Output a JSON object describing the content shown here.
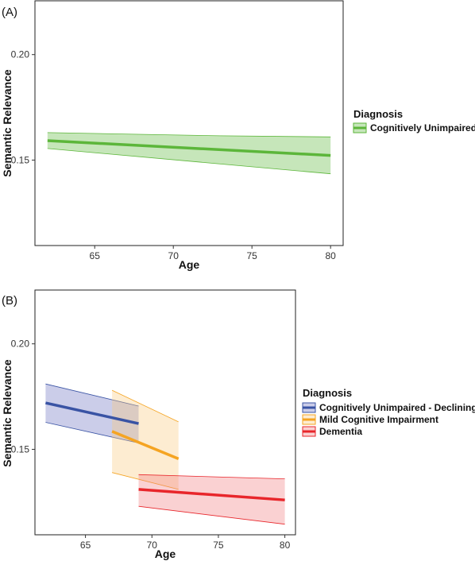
{
  "chart_data": [
    {
      "type": "line",
      "panel_label": "(A)",
      "xlabel": "Age",
      "ylabel": "Semantic Relevance",
      "xlim": [
        61.2,
        80.8
      ],
      "ylim": [
        0.1095,
        0.2255
      ],
      "x_ticks": [
        65,
        70,
        75,
        80
      ],
      "x_tick_labels": [
        "65",
        "70",
        "75",
        "80"
      ],
      "y_ticks": [
        0.15,
        0.2
      ],
      "y_tick_labels": [
        "0.15",
        "0.20"
      ],
      "grid": false,
      "legend": {
        "title": "Diagnosis",
        "placement": "right",
        "entries": [
          "Cognitively Unimpaired"
        ]
      },
      "series": [
        {
          "name": "Cognitively Unimpaired",
          "color": "#5CB63A",
          "fill": "#5CB63A",
          "x": [
            62,
            80
          ],
          "y": [
            0.1592,
            0.1522
          ],
          "lower": [
            0.1555,
            0.1435
          ],
          "upper": [
            0.163,
            0.161
          ],
          "upper_mid": [
            73,
            0.1615
          ]
        }
      ]
    },
    {
      "type": "line",
      "panel_label": "(B)",
      "xlabel": "Age",
      "ylabel": "Semantic Relevance",
      "xlim": [
        61.2,
        80.8
      ],
      "ylim": [
        0.1095,
        0.2255
      ],
      "x_ticks": [
        65,
        70,
        75,
        80
      ],
      "x_tick_labels": [
        "65",
        "70",
        "75",
        "80"
      ],
      "y_ticks": [
        0.15,
        0.2
      ],
      "y_tick_labels": [
        "0.15",
        "0.20"
      ],
      "grid": false,
      "legend": {
        "title": "Diagnosis",
        "placement": "right",
        "entries": [
          "Cognitively Unimpaired - Declining",
          "Mild Cognitive Impairment",
          "Dementia"
        ]
      },
      "series": [
        {
          "name": "Cognitively Unimpaired - Declining",
          "color": "#3953A4",
          "fill": "#6A6FC0",
          "x": [
            62,
            69
          ],
          "y": [
            0.172,
            0.1622
          ],
          "lower": [
            0.1628,
            0.153
          ],
          "upper": [
            0.181,
            0.1705
          ]
        },
        {
          "name": "Mild Cognitive Impairment",
          "color": "#F5A422",
          "fill": "#F9C97A",
          "x": [
            67,
            72
          ],
          "y": [
            0.1585,
            0.1455
          ],
          "lower": [
            0.139,
            0.131
          ],
          "upper": [
            0.178,
            0.163
          ]
        },
        {
          "name": "Dementia",
          "color": "#E8262B",
          "fill": "#F07A7D",
          "x": [
            69,
            80
          ],
          "y": [
            0.131,
            0.126
          ],
          "lower": [
            0.123,
            0.1145
          ],
          "upper": [
            0.138,
            0.136
          ]
        }
      ]
    }
  ]
}
